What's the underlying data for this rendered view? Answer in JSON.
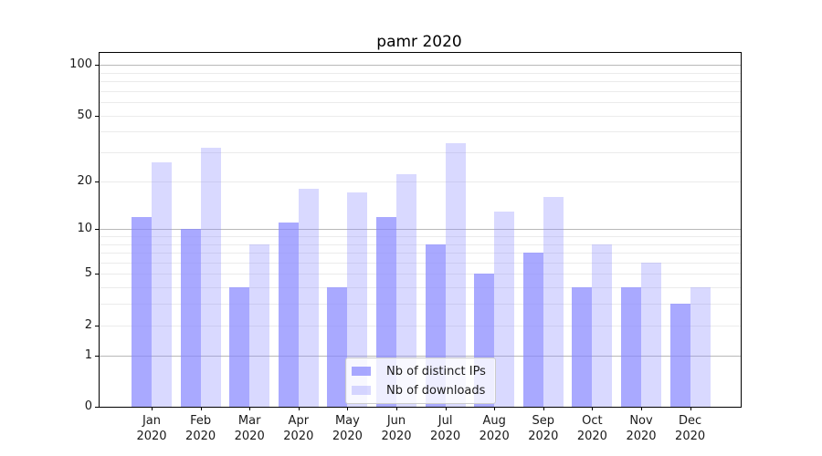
{
  "chart_data": {
    "type": "bar",
    "title": "pamr 2020",
    "scale": "log1p",
    "ylim": [
      0,
      100
    ],
    "yticks": [
      0,
      1,
      2,
      5,
      10,
      20,
      50,
      100
    ],
    "gridlines": {
      "major": [
        1,
        10,
        100
      ],
      "minor": [
        2,
        3,
        4,
        6,
        7,
        8,
        9,
        20,
        30,
        40,
        60,
        70,
        80,
        90
      ],
      "minor_labeled": [
        2,
        5,
        20,
        50
      ]
    },
    "categories": [
      "Jan 2020",
      "Feb 2020",
      "Mar 2020",
      "Apr 2020",
      "May 2020",
      "Jun 2020",
      "Jul 2020",
      "Aug 2020",
      "Sep 2020",
      "Oct 2020",
      "Nov 2020",
      "Dec 2020"
    ],
    "series": [
      {
        "name": "Nb of distinct IPs",
        "color": "rgba(136,136,255,0.72)",
        "values": [
          12,
          10,
          4,
          11,
          4,
          12,
          8,
          5,
          7,
          4,
          4,
          3
        ]
      },
      {
        "name": "Nb of downloads",
        "color": "rgba(136,136,255,0.32)",
        "values": [
          26,
          32,
          8,
          18,
          17,
          22,
          34,
          13,
          16,
          8,
          6,
          4
        ]
      }
    ],
    "legend_position": "lower center",
    "colors": {
      "bar_base": "#8888ff",
      "axis": "#000000",
      "grid_major": "#b8b8b8",
      "grid_minor": "#ebebeb"
    }
  }
}
